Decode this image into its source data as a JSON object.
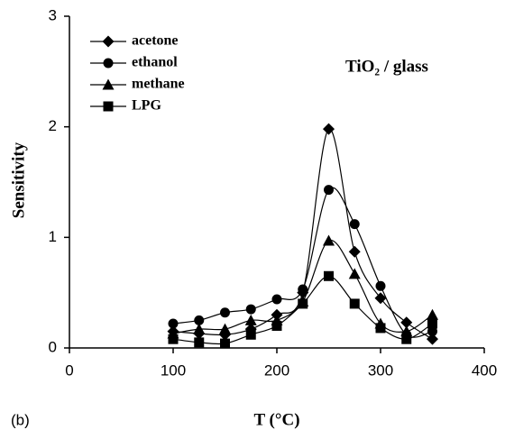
{
  "chart_data": {
    "type": "line",
    "panel_label": "(b)",
    "annotation": "TiO₂ / glass",
    "x_label": "T (°C)",
    "y_label": "Sensitivity",
    "x": [
      100,
      125,
      150,
      175,
      200,
      225,
      250,
      275,
      300,
      325,
      350
    ],
    "series": [
      {
        "name": "acetone",
        "color": "#000000",
        "marker": "diamond",
        "values": [
          0.15,
          0.13,
          0.12,
          0.17,
          0.3,
          0.5,
          1.98,
          0.87,
          0.45,
          0.23,
          0.08
        ]
      },
      {
        "name": "ethanol",
        "color": "#000000",
        "marker": "circle",
        "values": [
          0.22,
          0.25,
          0.32,
          0.35,
          0.44,
          0.53,
          1.43,
          1.12,
          0.56,
          0.12,
          0.15
        ]
      },
      {
        "name": "methane",
        "color": "#000000",
        "marker": "triangle",
        "values": [
          0.13,
          0.17,
          0.17,
          0.25,
          0.25,
          0.42,
          0.97,
          0.67,
          0.22,
          0.15,
          0.3
        ]
      },
      {
        "name": "LPG",
        "color": "#000000",
        "marker": "square",
        "values": [
          0.08,
          0.05,
          0.04,
          0.12,
          0.2,
          0.4,
          0.65,
          0.4,
          0.18,
          0.08,
          0.22
        ]
      }
    ],
    "xlim": [
      0,
      400
    ],
    "xticks": [
      0,
      100,
      200,
      300,
      400
    ],
    "ylim": [
      0,
      3
    ],
    "yticks": [
      0,
      1,
      2,
      3
    ],
    "grid": false,
    "legend": "upper left"
  }
}
